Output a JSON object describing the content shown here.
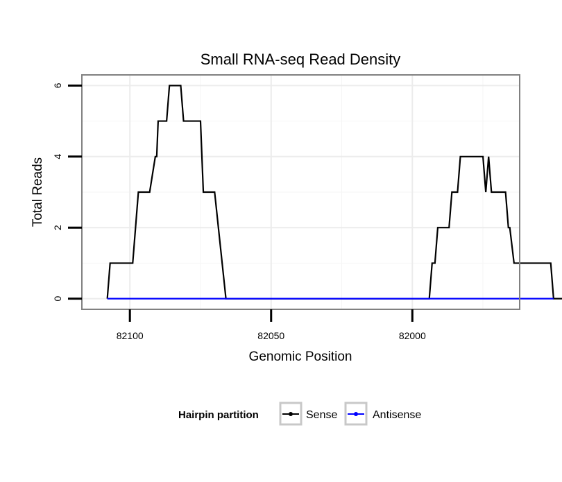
{
  "chart_data": {
    "type": "line",
    "title": "Small RNA-seq Read Density",
    "xlabel": "Genomic Position",
    "ylabel": "Total Reads",
    "xlim": [
      82117,
      81962
    ],
    "ylim": [
      -0.3,
      6.3
    ],
    "x_reversed": true,
    "grid": true,
    "x_ticks": [
      {
        "value": 82100,
        "label": "82100"
      },
      {
        "value": 82050,
        "label": "82050"
      },
      {
        "value": 82000,
        "label": "82000"
      }
    ],
    "y_ticks": [
      {
        "value": 0,
        "label": "0"
      },
      {
        "value": 2,
        "label": "2"
      },
      {
        "value": 4,
        "label": "4"
      },
      {
        "value": 6,
        "label": "6"
      }
    ],
    "legend": {
      "title": "Hairpin partition",
      "position": "bottom",
      "entries": [
        {
          "label": "Sense",
          "color": "#000000"
        },
        {
          "label": "Antisense",
          "color": "#0000ff"
        }
      ]
    },
    "series": [
      {
        "name": "Sense",
        "color": "#000000",
        "points": [
          [
            82108,
            0
          ],
          [
            82107,
            1
          ],
          [
            82099,
            1
          ],
          [
            82097,
            3
          ],
          [
            82093,
            3
          ],
          [
            82091,
            4
          ],
          [
            82090.5,
            4
          ],
          [
            82090,
            5
          ],
          [
            82087,
            5
          ],
          [
            82086,
            6
          ],
          [
            82082,
            6
          ],
          [
            82081,
            5
          ],
          [
            82075,
            5
          ],
          [
            82074,
            3
          ],
          [
            82070,
            3
          ],
          [
            82066,
            0
          ],
          [
            81994,
            0
          ],
          [
            81993,
            1
          ],
          [
            81992,
            1
          ],
          [
            81991,
            2
          ],
          [
            81987,
            2
          ],
          [
            81986,
            3
          ],
          [
            81984,
            3
          ],
          [
            81983,
            4
          ],
          [
            81975,
            4
          ],
          [
            81974,
            3
          ],
          [
            81973,
            4
          ],
          [
            81972,
            3
          ],
          [
            81967,
            3
          ],
          [
            81966,
            2
          ],
          [
            81965.5,
            2
          ],
          [
            81964,
            1
          ],
          [
            81951,
            1
          ],
          [
            81950,
            0
          ],
          [
            81947,
            0
          ]
        ]
      },
      {
        "name": "Antisense",
        "color": "#0000ff",
        "points": [
          [
            82108,
            0
          ],
          [
            81950,
            0
          ]
        ]
      }
    ]
  }
}
